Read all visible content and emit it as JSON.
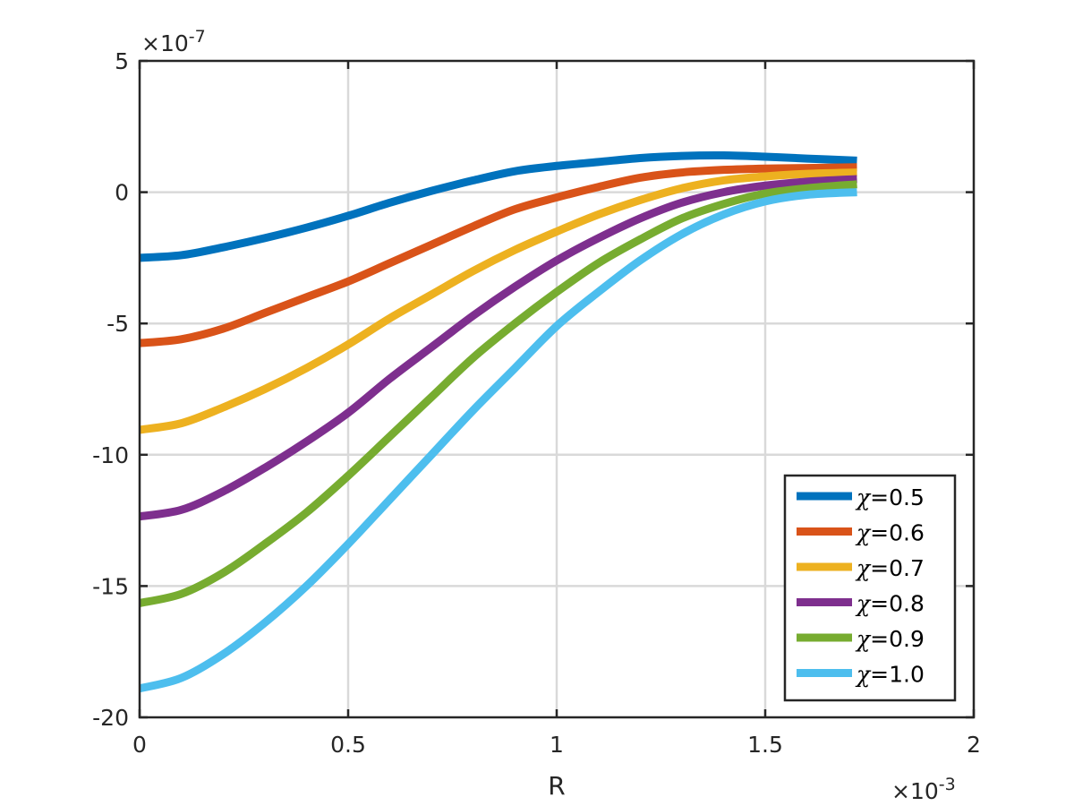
{
  "chart_data": {
    "type": "line",
    "xlabel": "R",
    "ylabel": "",
    "x_exponent_label": "×10",
    "x_exponent_power": "-3",
    "y_exponent_label": "×10",
    "y_exponent_power": "-7",
    "xlim": [
      0,
      2
    ],
    "ylim": [
      -20,
      5
    ],
    "x_ticks": [
      0,
      0.5,
      1,
      1.5,
      2
    ],
    "x_tick_labels": [
      "0",
      "0.5",
      "1",
      "1.5",
      "2"
    ],
    "y_ticks": [
      -20,
      -15,
      -10,
      -5,
      0,
      5
    ],
    "y_tick_labels": [
      "-20",
      "-15",
      "-10",
      "-5",
      "0",
      "5"
    ],
    "grid": true,
    "legend_position": "bottom-right",
    "x": [
      0,
      0.1,
      0.2,
      0.3,
      0.4,
      0.5,
      0.6,
      0.7,
      0.8,
      0.9,
      1.0,
      1.1,
      1.2,
      1.3,
      1.4,
      1.5,
      1.6,
      1.72
    ],
    "series": [
      {
        "name": "χ=0.5",
        "symbol": "χ",
        "value_text": "=0.5",
        "color": "#0072BD",
        "values": [
          -2.5,
          -2.4,
          -2.1,
          -1.75,
          -1.35,
          -0.9,
          -0.4,
          0.05,
          0.45,
          0.8,
          1.0,
          1.15,
          1.3,
          1.38,
          1.4,
          1.35,
          1.28,
          1.2
        ]
      },
      {
        "name": "χ=0.6",
        "symbol": "χ",
        "value_text": "=0.6",
        "color": "#D95319",
        "values": [
          -5.75,
          -5.6,
          -5.2,
          -4.6,
          -4.0,
          -3.4,
          -2.7,
          -2.0,
          -1.3,
          -0.65,
          -0.2,
          0.2,
          0.55,
          0.75,
          0.85,
          0.9,
          0.92,
          0.95
        ]
      },
      {
        "name": "χ=0.7",
        "symbol": "χ",
        "value_text": "=0.7",
        "color": "#EDB120",
        "values": [
          -9.05,
          -8.8,
          -8.2,
          -7.5,
          -6.7,
          -5.8,
          -4.8,
          -3.9,
          -3.0,
          -2.2,
          -1.5,
          -0.85,
          -0.3,
          0.15,
          0.45,
          0.6,
          0.7,
          0.75
        ]
      },
      {
        "name": "χ=0.8",
        "symbol": "χ",
        "value_text": "=0.8",
        "color": "#7E2F8E",
        "values": [
          -12.35,
          -12.1,
          -11.4,
          -10.5,
          -9.5,
          -8.4,
          -7.1,
          -5.9,
          -4.7,
          -3.6,
          -2.6,
          -1.75,
          -1.0,
          -0.4,
          0.0,
          0.25,
          0.4,
          0.5
        ]
      },
      {
        "name": "χ=0.9",
        "symbol": "χ",
        "value_text": "=0.9",
        "color": "#77AC30",
        "values": [
          -15.65,
          -15.3,
          -14.5,
          -13.4,
          -12.2,
          -10.8,
          -9.3,
          -7.8,
          -6.3,
          -5.0,
          -3.8,
          -2.7,
          -1.8,
          -1.0,
          -0.45,
          -0.05,
          0.15,
          0.3
        ]
      },
      {
        "name": "χ=1.0",
        "symbol": "χ",
        "value_text": "=1.0",
        "color": "#4DBEEE",
        "values": [
          -18.9,
          -18.5,
          -17.6,
          -16.4,
          -15.0,
          -13.4,
          -11.7,
          -10.0,
          -8.3,
          -6.7,
          -5.1,
          -3.8,
          -2.6,
          -1.6,
          -0.85,
          -0.35,
          -0.1,
          0.0
        ]
      }
    ]
  }
}
